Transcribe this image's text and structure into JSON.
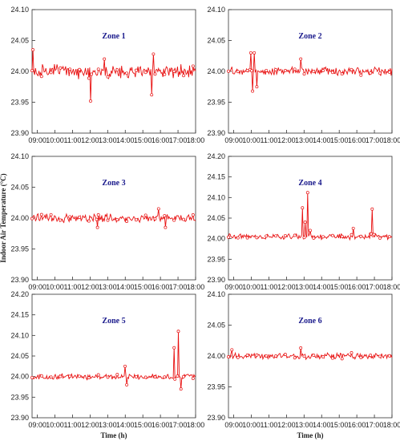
{
  "chart_data": [
    {
      "type": "line",
      "title": "Zone 1",
      "ylabel": "",
      "xlabel": "",
      "ylim": [
        23.9,
        24.1
      ],
      "yticks": [
        "23.90",
        "23.95",
        "24.00",
        "24.05",
        "24.10"
      ],
      "xticks": [
        "09:00",
        "10:00",
        "11:00",
        "12:00",
        "13:00",
        "14:00",
        "15:00",
        "16:00",
        "17:00",
        "18:00"
      ],
      "x_hours": [
        8.7,
        18.0
      ],
      "baseline": 24.0,
      "amplitude": 0.013,
      "spikes": [
        {
          "x": 8.75,
          "y": 24.035
        },
        {
          "x": 12.05,
          "y": 23.952
        },
        {
          "x": 12.8,
          "y": 24.02
        },
        {
          "x": 15.5,
          "y": 23.962
        },
        {
          "x": 15.6,
          "y": 24.028
        }
      ]
    },
    {
      "type": "line",
      "title": "Zone 2",
      "ylabel": "",
      "xlabel": "",
      "ylim": [
        23.9,
        24.1
      ],
      "yticks": [
        "23.90",
        "23.95",
        "24.00",
        "24.05",
        "24.10"
      ],
      "xticks": [
        "09:00",
        "10:00",
        "11:00",
        "12:00",
        "13:00",
        "14:00",
        "15:00",
        "16:00",
        "17:00",
        "18:00"
      ],
      "x_hours": [
        8.7,
        18.0
      ],
      "baseline": 24.0,
      "amplitude": 0.008,
      "spikes": [
        {
          "x": 9.95,
          "y": 24.03
        },
        {
          "x": 10.05,
          "y": 23.968
        },
        {
          "x": 10.15,
          "y": 24.03
        },
        {
          "x": 10.3,
          "y": 23.975
        },
        {
          "x": 12.8,
          "y": 24.02
        }
      ]
    },
    {
      "type": "line",
      "title": "Zone 3",
      "ylabel": "Indoor Air Temperature (°C)",
      "xlabel": "",
      "ylim": [
        23.9,
        24.1
      ],
      "yticks": [
        "23.90",
        "23.95",
        "24.00",
        "24.05",
        "24.10"
      ],
      "xticks": [
        "09:00",
        "10:00",
        "11:00",
        "12:00",
        "13:00",
        "14:00",
        "15:00",
        "16:00",
        "17:00",
        "18:00"
      ],
      "x_hours": [
        8.7,
        18.0
      ],
      "baseline": 24.0,
      "amplitude": 0.008,
      "spikes": [
        {
          "x": 12.4,
          "y": 23.985
        },
        {
          "x": 15.9,
          "y": 24.015
        },
        {
          "x": 16.3,
          "y": 23.985
        }
      ]
    },
    {
      "type": "line",
      "title": "Zone 4",
      "ylabel": "",
      "xlabel": "",
      "ylim": [
        23.9,
        24.2
      ],
      "yticks": [
        "23.90",
        "23.95",
        "24.00",
        "24.05",
        "24.10",
        "24.15",
        "24.20"
      ],
      "xticks": [
        "09:00",
        "10:00",
        "11:00",
        "12:00",
        "13:00",
        "14:00",
        "15:00",
        "16:00",
        "17:00",
        "18:00"
      ],
      "x_hours": [
        8.7,
        18.0
      ],
      "baseline": 24.005,
      "amplitude": 0.008,
      "spikes": [
        {
          "x": 12.9,
          "y": 24.075
        },
        {
          "x": 13.05,
          "y": 24.04
        },
        {
          "x": 13.2,
          "y": 24.112
        },
        {
          "x": 13.35,
          "y": 24.02
        },
        {
          "x": 15.8,
          "y": 24.025
        },
        {
          "x": 16.85,
          "y": 24.072
        },
        {
          "x": 16.95,
          "y": 24.01
        }
      ]
    },
    {
      "type": "line",
      "title": "Zone 5",
      "ylabel": "",
      "xlabel": "Time (h)",
      "ylim": [
        23.9,
        24.2
      ],
      "yticks": [
        "23.90",
        "23.95",
        "24.00",
        "24.05",
        "24.10",
        "24.15",
        "24.20"
      ],
      "xticks": [
        "09:00",
        "10:00",
        "11:00",
        "12:00",
        "13:00",
        "14:00",
        "15:00",
        "16:00",
        "17:00",
        "18:00"
      ],
      "x_hours": [
        8.7,
        18.0
      ],
      "baseline": 24.0,
      "amplitude": 0.008,
      "spikes": [
        {
          "x": 14.0,
          "y": 24.025
        },
        {
          "x": 14.1,
          "y": 23.98
        },
        {
          "x": 16.8,
          "y": 24.07
        },
        {
          "x": 17.0,
          "y": 24.11
        },
        {
          "x": 17.15,
          "y": 23.97
        },
        {
          "x": 17.3,
          "y": 24.0
        }
      ]
    },
    {
      "type": "line",
      "title": "Zone 6",
      "ylabel": "",
      "xlabel": "Time (h)",
      "ylim": [
        23.9,
        24.1
      ],
      "yticks": [
        "23.90",
        "23.95",
        "24.00",
        "24.05",
        "24.10"
      ],
      "xticks": [
        "09:00",
        "10:00",
        "11:00",
        "12:00",
        "13:00",
        "14:00",
        "15:00",
        "16:00",
        "17:00",
        "18:00"
      ],
      "x_hours": [
        8.7,
        18.0
      ],
      "baseline": 24.0,
      "amplitude": 0.006,
      "spikes": [
        {
          "x": 8.9,
          "y": 24.01
        },
        {
          "x": 12.8,
          "y": 24.013
        }
      ]
    }
  ],
  "colors": {
    "line": "#e81010",
    "axis": "#333333",
    "title": "#1a1a8c"
  }
}
